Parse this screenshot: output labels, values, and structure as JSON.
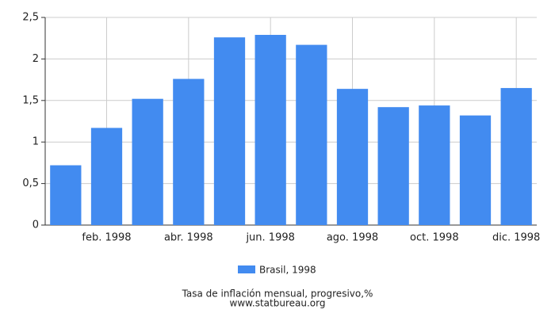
{
  "chart_data": {
    "type": "bar",
    "title": "Tasa de inflación mensual, progresivo,%",
    "source": "www.statbureau.org",
    "categories": [
      null,
      "feb. 1998",
      null,
      "abr. 1998",
      null,
      "jun. 1998",
      null,
      "ago. 1998",
      null,
      "oct. 1998",
      null,
      "dic. 1998"
    ],
    "series": [
      {
        "name": "Brasil, 1998",
        "color": "#428bf0",
        "values": [
          0.72,
          1.17,
          1.52,
          1.76,
          2.26,
          2.29,
          2.17,
          1.64,
          1.42,
          1.44,
          1.32,
          1.65
        ]
      }
    ],
    "ylim": [
      0,
      2.5
    ],
    "yticks": [
      0,
      {
        "value": 0.5,
        "label": "0,5"
      },
      1,
      {
        "value": 1.5,
        "label": "1,5"
      },
      2,
      {
        "value": 2.5,
        "label": "2,5"
      }
    ],
    "grid": true
  }
}
